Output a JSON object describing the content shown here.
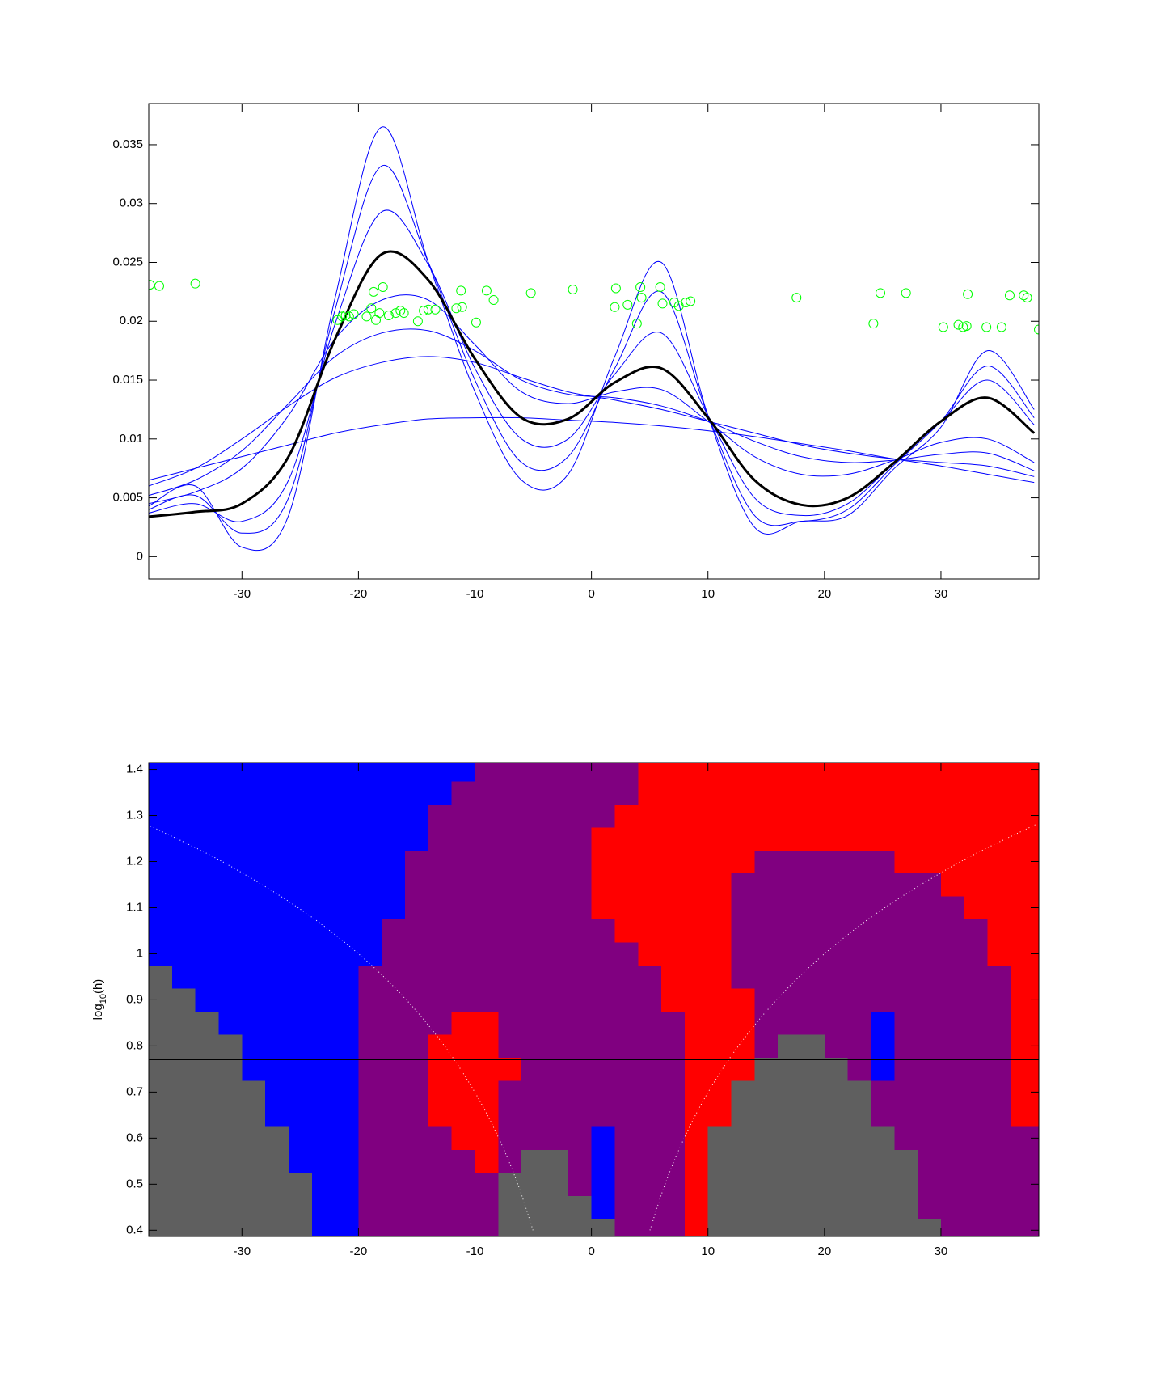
{
  "chart_data": [
    {
      "type": "line",
      "xlim": [
        -38,
        38.4
      ],
      "ylim": [
        -0.0019,
        0.0385
      ],
      "xticks": [
        -30,
        -20,
        -10,
        0,
        10,
        20,
        30
      ],
      "yticks": [
        0,
        0.005,
        0.01,
        0.015,
        0.02,
        0.025,
        0.03,
        0.035
      ],
      "x": [
        -38,
        -34,
        -30,
        -26,
        -22,
        -18,
        -14,
        -10,
        -6,
        -2,
        2,
        6,
        10,
        14,
        18,
        22,
        26,
        30,
        34,
        38
      ],
      "series": [
        {
          "color": "#0000ff",
          "width": 1,
          "values": [
            0.0043,
            0.006,
            0.0008,
            0.0035,
            0.022,
            0.0365,
            0.025,
            0.014,
            0.0065,
            0.007,
            0.017,
            0.025,
            0.012,
            0.0025,
            0.003,
            0.0035,
            0.0075,
            0.011,
            0.0175,
            0.0125
          ]
        },
        {
          "color": "#0000ff",
          "width": 1,
          "values": [
            0.004,
            0.0052,
            0.002,
            0.005,
            0.021,
            0.0332,
            0.025,
            0.015,
            0.008,
            0.0085,
            0.016,
            0.0225,
            0.012,
            0.0035,
            0.003,
            0.004,
            0.0078,
            0.0115,
            0.0162,
            0.0118
          ]
        },
        {
          "color": "#0000ff",
          "width": 1,
          "values": [
            0.0037,
            0.0045,
            0.003,
            0.0065,
            0.0198,
            0.0293,
            0.0248,
            0.016,
            0.01,
            0.01,
            0.0155,
            0.019,
            0.012,
            0.005,
            0.0035,
            0.0045,
            0.008,
            0.0115,
            0.015,
            0.0112
          ]
        },
        {
          "color": "#0000ff",
          "width": 1,
          "values": [
            0.0045,
            0.0055,
            0.0075,
            0.012,
            0.0185,
            0.0218,
            0.0218,
            0.018,
            0.014,
            0.013,
            0.014,
            0.0142,
            0.0115,
            0.0085,
            0.007,
            0.007,
            0.0082,
            0.0097,
            0.01,
            0.008
          ]
        },
        {
          "color": "#0000ff",
          "width": 1,
          "values": [
            0.0052,
            0.0065,
            0.009,
            0.013,
            0.017,
            0.019,
            0.0192,
            0.0175,
            0.015,
            0.0138,
            0.0135,
            0.0128,
            0.0115,
            0.0098,
            0.0085,
            0.008,
            0.0082,
            0.0087,
            0.0088,
            0.0073
          ]
        },
        {
          "color": "#0000ff",
          "width": 1,
          "values": [
            0.006,
            0.0075,
            0.01,
            0.0128,
            0.0152,
            0.0165,
            0.017,
            0.0165,
            0.0152,
            0.014,
            0.0133,
            0.0125,
            0.0115,
            0.0105,
            0.0095,
            0.0088,
            0.0083,
            0.008,
            0.0077,
            0.0068
          ]
        },
        {
          "color": "#0000ff",
          "width": 1,
          "values": [
            0.0065,
            0.0075,
            0.0085,
            0.0095,
            0.0105,
            0.0112,
            0.0117,
            0.0118,
            0.0118,
            0.0116,
            0.0114,
            0.0111,
            0.0107,
            0.0102,
            0.0096,
            0.009,
            0.0083,
            0.0077,
            0.007,
            0.0063
          ]
        },
        {
          "color": "#000000",
          "width": 3,
          "values": [
            0.0034,
            0.0038,
            0.0045,
            0.0085,
            0.0185,
            0.0257,
            0.0235,
            0.0168,
            0.0118,
            0.0117,
            0.0148,
            0.016,
            0.0118,
            0.0065,
            0.0044,
            0.005,
            0.008,
            0.0115,
            0.0135,
            0.0105
          ]
        }
      ],
      "points": {
        "color": "#00ff00",
        "x": [
          -37.9,
          -37.1,
          -34.0,
          -21.8,
          -21.4,
          -21.1,
          -20.8,
          -20.4,
          -19.3,
          -18.9,
          -18.7,
          -18.5,
          -18.2,
          -17.9,
          -17.4,
          -16.8,
          -16.4,
          -16.1,
          -14.9,
          -14.4,
          -14.0,
          -13.4,
          -11.6,
          -11.2,
          -11.1,
          -9.9,
          -9.0,
          -8.4,
          -5.2,
          -1.6,
          2.0,
          2.1,
          3.1,
          3.9,
          4.2,
          4.3,
          5.9,
          6.1,
          7.1,
          7.5,
          8.1,
          8.5,
          17.6,
          24.2,
          24.8,
          27.0,
          30.2,
          31.5,
          31.9,
          32.2,
          32.3,
          33.9,
          35.2,
          35.9,
          37.1,
          37.4,
          38.4
        ],
        "y": [
          0.0231,
          0.023,
          0.0232,
          0.0201,
          0.0204,
          0.0205,
          0.0204,
          0.0206,
          0.0204,
          0.0211,
          0.0225,
          0.0201,
          0.0207,
          0.0229,
          0.0205,
          0.0207,
          0.0209,
          0.0207,
          0.02,
          0.0209,
          0.021,
          0.021,
          0.0211,
          0.0226,
          0.0212,
          0.0199,
          0.0226,
          0.0218,
          0.0224,
          0.0227,
          0.0212,
          0.0228,
          0.0214,
          0.0198,
          0.0229,
          0.022,
          0.0229,
          0.0215,
          0.0216,
          0.0213,
          0.0216,
          0.0217,
          0.022,
          0.0198,
          0.0224,
          0.0224,
          0.0195,
          0.0197,
          0.0195,
          0.0196,
          0.0223,
          0.0195,
          0.0195,
          0.0222,
          0.0222,
          0.022,
          0.0193
        ]
      }
    },
    {
      "type": "heatmap",
      "ylabel": [
        "log",
        "10",
        "(h)"
      ],
      "xlim": [
        -38,
        38.4
      ],
      "ylim": [
        0.3865,
        1.415
      ],
      "xticks": [
        -30,
        -20,
        -10,
        0,
        10,
        20,
        30
      ],
      "yticks": [
        0.4,
        0.5,
        0.6,
        0.7,
        0.8,
        0.9,
        1,
        1.1,
        1.2,
        1.3,
        1.4
      ],
      "colors": [
        "#5f5f5f",
        "#0000ff",
        "#800080",
        "#ff0000"
      ],
      "x": [
        -37,
        -35,
        -33,
        -31,
        -29,
        -27,
        -25,
        -23,
        -21,
        -19,
        -17,
        -15,
        -13,
        -11,
        -9,
        -7,
        -5,
        -3,
        -1,
        1,
        3,
        5,
        7,
        9,
        11,
        13,
        15,
        17,
        19,
        21,
        23,
        25,
        27,
        29,
        31,
        33,
        35,
        37
      ],
      "y": [
        0.4,
        0.45,
        0.5,
        0.55,
        0.6,
        0.65,
        0.7,
        0.75,
        0.8,
        0.85,
        0.9,
        0.95,
        1,
        1.05,
        1.1,
        1.15,
        1.2,
        1.25,
        1.3,
        1.35,
        1.4
      ],
      "cells": [
        [
          0,
          0,
          0,
          0,
          0,
          0,
          0,
          1,
          1,
          2,
          2,
          2,
          2,
          2,
          2,
          0,
          0,
          0,
          0,
          0,
          2,
          2,
          2,
          3,
          0,
          0,
          0,
          0,
          0,
          0,
          0,
          0,
          0,
          0,
          2,
          2,
          2,
          2
        ],
        [
          0,
          0,
          0,
          0,
          0,
          0,
          0,
          1,
          1,
          2,
          2,
          2,
          2,
          2,
          2,
          0,
          0,
          0,
          0,
          1,
          2,
          2,
          2,
          3,
          0,
          0,
          0,
          0,
          0,
          0,
          0,
          0,
          0,
          2,
          2,
          2,
          2,
          2
        ],
        [
          0,
          0,
          0,
          0,
          0,
          0,
          0,
          1,
          1,
          2,
          2,
          2,
          2,
          2,
          2,
          0,
          0,
          0,
          2,
          1,
          2,
          2,
          2,
          3,
          0,
          0,
          0,
          0,
          0,
          0,
          0,
          0,
          0,
          2,
          2,
          2,
          2,
          2
        ],
        [
          0,
          0,
          0,
          0,
          0,
          0,
          1,
          1,
          1,
          2,
          2,
          2,
          2,
          2,
          3,
          2,
          0,
          0,
          2,
          1,
          2,
          2,
          2,
          3,
          0,
          0,
          0,
          0,
          0,
          0,
          0,
          0,
          0,
          2,
          2,
          2,
          2,
          2
        ],
        [
          0,
          0,
          0,
          0,
          0,
          0,
          1,
          1,
          1,
          2,
          2,
          2,
          2,
          3,
          3,
          2,
          2,
          2,
          2,
          1,
          2,
          2,
          2,
          3,
          0,
          0,
          0,
          0,
          0,
          0,
          0,
          0,
          2,
          2,
          2,
          2,
          2,
          2
        ],
        [
          0,
          0,
          0,
          0,
          0,
          1,
          1,
          1,
          1,
          2,
          2,
          2,
          3,
          3,
          3,
          2,
          2,
          2,
          2,
          2,
          2,
          2,
          2,
          3,
          3,
          0,
          0,
          0,
          0,
          0,
          0,
          2,
          2,
          2,
          2,
          2,
          2,
          3
        ],
        [
          0,
          0,
          0,
          0,
          0,
          1,
          1,
          1,
          1,
          2,
          2,
          2,
          3,
          3,
          3,
          2,
          2,
          2,
          2,
          2,
          2,
          2,
          2,
          3,
          3,
          0,
          0,
          0,
          0,
          0,
          0,
          2,
          2,
          2,
          2,
          2,
          2,
          3
        ],
        [
          0,
          0,
          0,
          0,
          1,
          1,
          1,
          1,
          1,
          2,
          2,
          2,
          3,
          3,
          3,
          3,
          2,
          2,
          2,
          2,
          2,
          2,
          2,
          3,
          3,
          3,
          0,
          0,
          0,
          0,
          2,
          1,
          2,
          2,
          2,
          2,
          2,
          3
        ],
        [
          0,
          0,
          0,
          0,
          1,
          1,
          1,
          1,
          1,
          2,
          2,
          2,
          3,
          3,
          3,
          2,
          2,
          2,
          2,
          2,
          2,
          2,
          2,
          3,
          3,
          3,
          2,
          0,
          0,
          2,
          2,
          1,
          2,
          2,
          2,
          2,
          2,
          3
        ],
        [
          0,
          0,
          0,
          1,
          1,
          1,
          1,
          1,
          1,
          2,
          2,
          2,
          2,
          3,
          3,
          2,
          2,
          2,
          2,
          2,
          2,
          2,
          2,
          3,
          3,
          3,
          2,
          2,
          2,
          2,
          2,
          1,
          2,
          2,
          2,
          2,
          2,
          3
        ],
        [
          0,
          0,
          1,
          1,
          1,
          1,
          1,
          1,
          1,
          2,
          2,
          2,
          2,
          2,
          2,
          2,
          2,
          2,
          2,
          2,
          2,
          2,
          3,
          3,
          3,
          3,
          2,
          2,
          2,
          2,
          2,
          2,
          2,
          2,
          2,
          2,
          2,
          3
        ],
        [
          0,
          1,
          1,
          1,
          1,
          1,
          1,
          1,
          1,
          2,
          2,
          2,
          2,
          2,
          2,
          2,
          2,
          2,
          2,
          2,
          2,
          2,
          3,
          3,
          3,
          2,
          2,
          2,
          2,
          2,
          2,
          2,
          2,
          2,
          2,
          2,
          2,
          3
        ],
        [
          1,
          1,
          1,
          1,
          1,
          1,
          1,
          1,
          1,
          1,
          2,
          2,
          2,
          2,
          2,
          2,
          2,
          2,
          2,
          2,
          2,
          3,
          3,
          3,
          3,
          2,
          2,
          2,
          2,
          2,
          2,
          2,
          2,
          2,
          2,
          2,
          3,
          3
        ],
        [
          1,
          1,
          1,
          1,
          1,
          1,
          1,
          1,
          1,
          1,
          2,
          2,
          2,
          2,
          2,
          2,
          2,
          2,
          2,
          2,
          3,
          3,
          3,
          3,
          3,
          2,
          2,
          2,
          2,
          2,
          2,
          2,
          2,
          2,
          2,
          2,
          3,
          3
        ],
        [
          1,
          1,
          1,
          1,
          1,
          1,
          1,
          1,
          1,
          1,
          1,
          2,
          2,
          2,
          2,
          2,
          2,
          2,
          2,
          3,
          3,
          3,
          3,
          3,
          3,
          2,
          2,
          2,
          2,
          2,
          2,
          2,
          2,
          2,
          2,
          3,
          3,
          3
        ],
        [
          1,
          1,
          1,
          1,
          1,
          1,
          1,
          1,
          1,
          1,
          1,
          2,
          2,
          2,
          2,
          2,
          2,
          2,
          2,
          3,
          3,
          3,
          3,
          3,
          3,
          2,
          2,
          2,
          2,
          2,
          2,
          2,
          2,
          2,
          3,
          3,
          3,
          3
        ],
        [
          1,
          1,
          1,
          1,
          1,
          1,
          1,
          1,
          1,
          1,
          1,
          2,
          2,
          2,
          2,
          2,
          2,
          2,
          2,
          3,
          3,
          3,
          3,
          3,
          3,
          3,
          2,
          2,
          2,
          2,
          2,
          2,
          3,
          3,
          3,
          3,
          3,
          3
        ],
        [
          1,
          1,
          1,
          1,
          1,
          1,
          1,
          1,
          1,
          1,
          1,
          1,
          2,
          2,
          2,
          2,
          2,
          2,
          2,
          3,
          3,
          3,
          3,
          3,
          3,
          3,
          3,
          3,
          3,
          3,
          3,
          3,
          3,
          3,
          3,
          3,
          3,
          3
        ],
        [
          1,
          1,
          1,
          1,
          1,
          1,
          1,
          1,
          1,
          1,
          1,
          1,
          2,
          2,
          2,
          2,
          2,
          2,
          2,
          2,
          3,
          3,
          3,
          3,
          3,
          3,
          3,
          3,
          3,
          3,
          3,
          3,
          3,
          3,
          3,
          3,
          3,
          3
        ],
        [
          1,
          1,
          1,
          1,
          1,
          1,
          1,
          1,
          1,
          1,
          1,
          1,
          1,
          2,
          2,
          2,
          2,
          2,
          2,
          2,
          2,
          3,
          3,
          3,
          3,
          3,
          3,
          3,
          3,
          3,
          3,
          3,
          3,
          3,
          3,
          3,
          3,
          3
        ],
        [
          1,
          1,
          1,
          1,
          1,
          1,
          1,
          1,
          1,
          1,
          1,
          1,
          1,
          1,
          2,
          2,
          2,
          2,
          2,
          2,
          2,
          3,
          3,
          3,
          3,
          3,
          3,
          3,
          3,
          3,
          3,
          3,
          3,
          3,
          3,
          3,
          3,
          3
        ]
      ],
      "curves": [
        {
          "color": "#ffffff",
          "x": [
            -5.02,
            -6.32,
            -7.96,
            -10.02,
            -12.62,
            -15.89,
            -20,
            -25.18,
            -31.7,
            -38.1
          ],
          "y": [
            0.4,
            0.5,
            0.6,
            0.7,
            0.8,
            0.9,
            1,
            1.1,
            1.2,
            1.28
          ]
        },
        {
          "color": "#ffffff",
          "x": [
            5.02,
            6.32,
            7.96,
            10.02,
            12.62,
            15.89,
            20,
            25.18,
            31.7,
            38.1
          ],
          "y": [
            0.4,
            0.5,
            0.6,
            0.7,
            0.8,
            0.9,
            1,
            1.1,
            1.2,
            1.28
          ]
        }
      ],
      "hline": 0.77
    }
  ]
}
